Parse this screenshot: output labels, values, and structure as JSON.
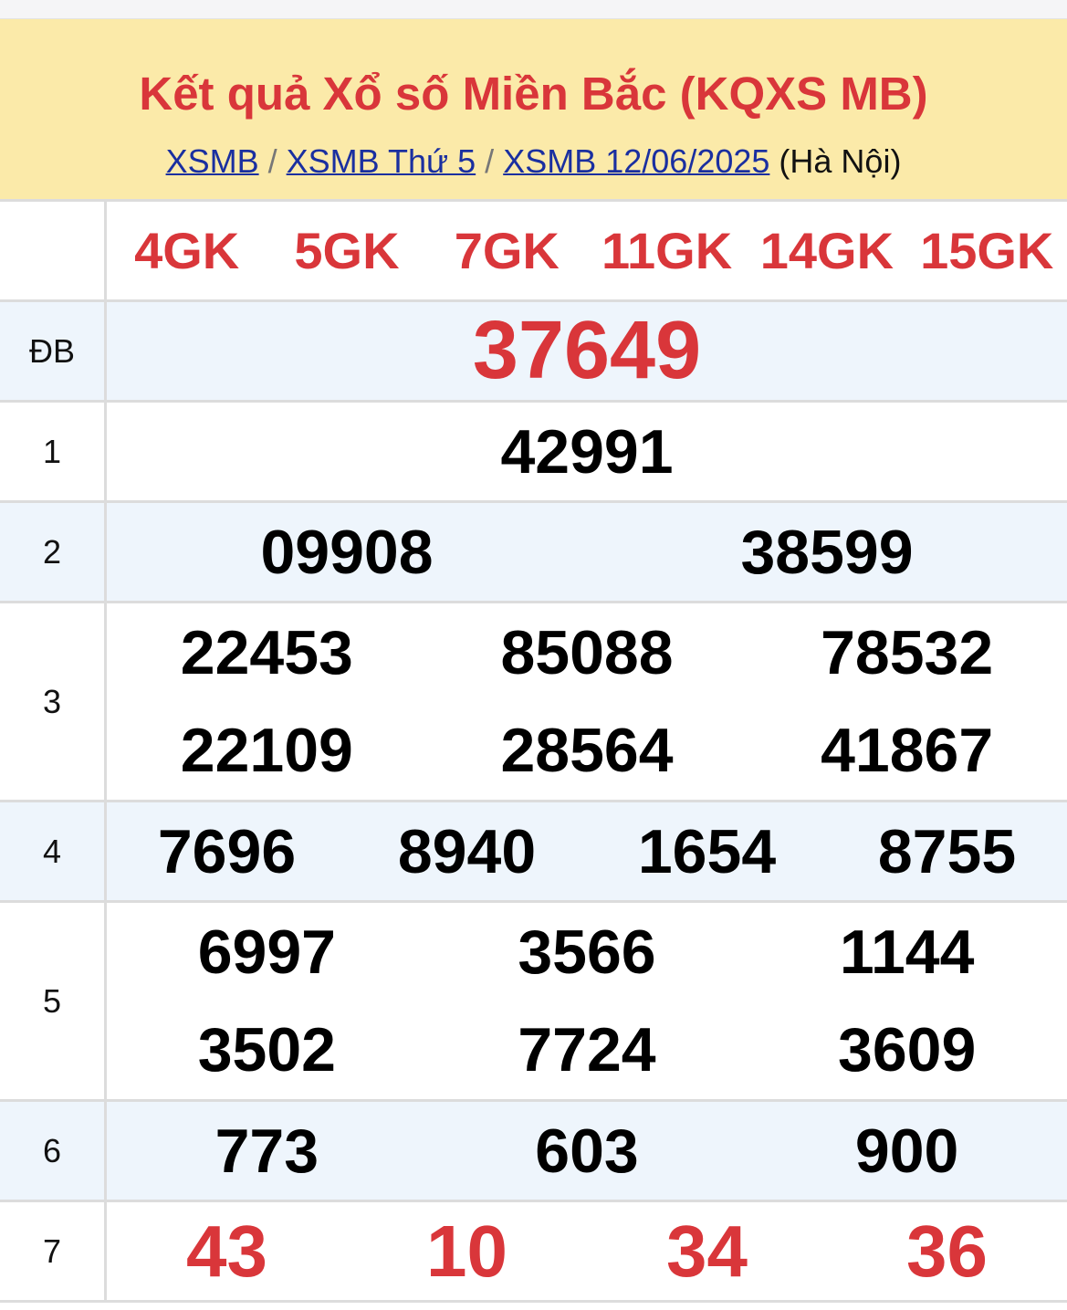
{
  "header": {
    "title": "Kết quả Xổ số Miền Bắc (KQXS MB)",
    "breadcrumbs": [
      {
        "label": "XSMB"
      },
      {
        "label": "XSMB Thứ 5"
      },
      {
        "label": "XSMB 12/06/2025"
      }
    ],
    "separator": "/",
    "location": "(Hà Nội)"
  },
  "codes": [
    "4GK",
    "5GK",
    "7GK",
    "11GK",
    "14GK",
    "15GK"
  ],
  "prizes": [
    {
      "label": "ĐB",
      "numbers": [
        "37649"
      ]
    },
    {
      "label": "1",
      "numbers": [
        "42991"
      ]
    },
    {
      "label": "2",
      "numbers": [
        "09908",
        "38599"
      ]
    },
    {
      "label": "3",
      "numbers": [
        "22453",
        "85088",
        "78532",
        "22109",
        "28564",
        "41867"
      ]
    },
    {
      "label": "4",
      "numbers": [
        "7696",
        "8940",
        "1654",
        "8755"
      ]
    },
    {
      "label": "5",
      "numbers": [
        "6997",
        "3566",
        "1144",
        "3502",
        "7724",
        "3609"
      ]
    },
    {
      "label": "6",
      "numbers": [
        "773",
        "603",
        "900"
      ]
    },
    {
      "label": "7",
      "numbers": [
        "43",
        "10",
        "34",
        "36"
      ]
    }
  ],
  "colors": {
    "title": "#d9363a",
    "link": "#1a2fa0",
    "header_bg": "#fbeaa9",
    "alt_row": "#eef5fc"
  }
}
